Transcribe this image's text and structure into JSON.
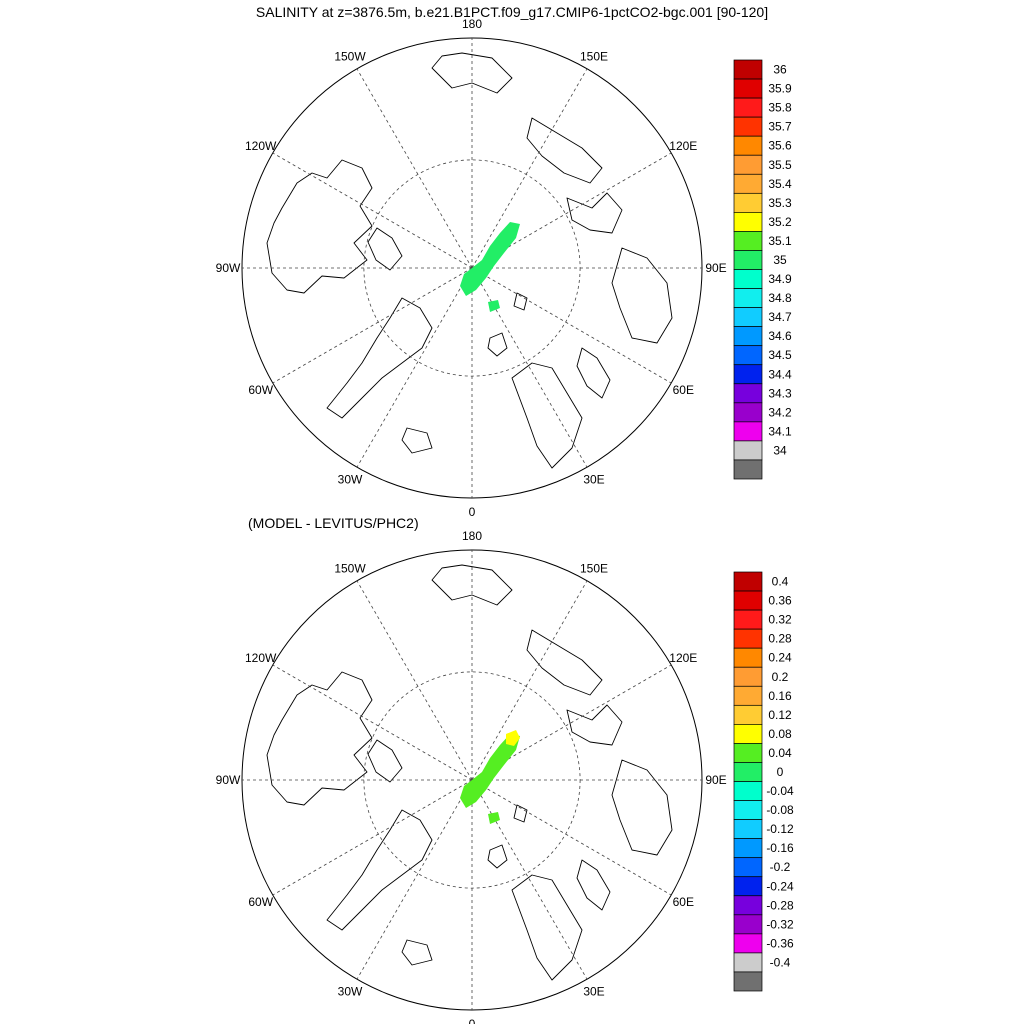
{
  "figure": {
    "title": "SALINITY at z=3876.5m, b.e21.B1PCT.f09_g17.CMIP6-1pctCO2-bgc.001 [90-120]"
  },
  "panels": [
    {
      "id": "salinity",
      "subtitle": "",
      "lon_labels": [
        {
          "text": "180",
          "lon": 180
        },
        {
          "text": "150E",
          "lon": 150
        },
        {
          "text": "120E",
          "lon": 120
        },
        {
          "text": "90E",
          "lon": 90
        },
        {
          "text": "60E",
          "lon": 60
        },
        {
          "text": "30E",
          "lon": 30
        },
        {
          "text": "0",
          "lon": 0
        },
        {
          "text": "30W",
          "lon": -30
        },
        {
          "text": "60W",
          "lon": -60
        },
        {
          "text": "90W",
          "lon": -90
        },
        {
          "text": "120W",
          "lon": -120
        },
        {
          "text": "150W",
          "lon": -150
        }
      ],
      "colorbar": {
        "labels": [
          "36",
          "35.9",
          "35.8",
          "35.7",
          "35.6",
          "35.5",
          "35.4",
          "35.3",
          "35.2",
          "35.1",
          "35",
          "34.9",
          "34.8",
          "34.7",
          "34.6",
          "34.5",
          "34.4",
          "34.3",
          "34.2",
          "34.1",
          "34"
        ],
        "colors": [
          "#c00000",
          "#e00000",
          "#ff1a1a",
          "#ff3300",
          "#ff8800",
          "#ff9c33",
          "#ffaa33",
          "#ffcc33",
          "#ffff00",
          "#55ee22",
          "#22ee66",
          "#00ffcc",
          "#11eeee",
          "#11ccff",
          "#0099ff",
          "#0066ff",
          "#0022ee",
          "#7700dd",
          "#9900cc",
          "#ee00ee",
          "#cccccc",
          "#707070"
        ]
      }
    },
    {
      "id": "difference",
      "subtitle": "(MODEL - LEVITUS/PHC2)",
      "lon_labels": [
        {
          "text": "180",
          "lon": 180
        },
        {
          "text": "150E",
          "lon": 150
        },
        {
          "text": "120E",
          "lon": 120
        },
        {
          "text": "90E",
          "lon": 90
        },
        {
          "text": "60E",
          "lon": 60
        },
        {
          "text": "30E",
          "lon": 30
        },
        {
          "text": "0",
          "lon": 0
        },
        {
          "text": "30W",
          "lon": -30
        },
        {
          "text": "60W",
          "lon": -60
        },
        {
          "text": "90W",
          "lon": -90
        },
        {
          "text": "120W",
          "lon": -120
        },
        {
          "text": "150W",
          "lon": -150
        }
      ],
      "colorbar": {
        "labels": [
          "0.4",
          "0.36",
          "0.32",
          "0.28",
          "0.24",
          "0.2",
          "0.16",
          "0.12",
          "0.08",
          "0.04",
          "0",
          "-0.04",
          "-0.08",
          "-0.12",
          "-0.16",
          "-0.2",
          "-0.24",
          "-0.28",
          "-0.32",
          "-0.36",
          "-0.4"
        ],
        "colors": [
          "#c00000",
          "#e00000",
          "#ff1a1a",
          "#ff3300",
          "#ff8800",
          "#ff9c33",
          "#ffaa33",
          "#ffcc33",
          "#ffff00",
          "#55ee22",
          "#22ee66",
          "#00ffcc",
          "#11eeee",
          "#11ccff",
          "#0099ff",
          "#0066ff",
          "#0022ee",
          "#7700dd",
          "#9900cc",
          "#ee00ee",
          "#cccccc",
          "#707070"
        ]
      }
    }
  ]
}
